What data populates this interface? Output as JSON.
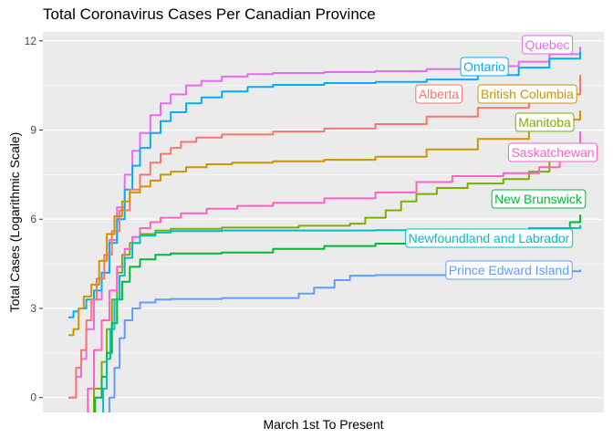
{
  "chart_data": {
    "type": "line",
    "title": "Total Coronavirus Cases Per Canadian Province",
    "xlabel": "March 1st To Present",
    "ylabel": "Total Cases (Logarithmic Scale)",
    "xlim": [
      0,
      100
    ],
    "ylim": [
      -0.5,
      12.3
    ],
    "yticks": [
      0,
      3,
      6,
      9,
      12
    ],
    "ytick_labels": [
      "0",
      "3",
      "6",
      "9",
      "12"
    ],
    "grid": true,
    "legend": "direct labels at line ends",
    "series": [
      {
        "name": "Quebec",
        "color": "#e76bf3",
        "points": [
          [
            0,
            0
          ],
          [
            1,
            0
          ],
          [
            1.5,
            0.7
          ],
          [
            2.5,
            1.3
          ],
          [
            3.5,
            2.3
          ],
          [
            5,
            3.3
          ],
          [
            6.5,
            4.2
          ],
          [
            8,
            5.3
          ],
          [
            9.5,
            6.4
          ],
          [
            11,
            7.5
          ],
          [
            12.5,
            8.3
          ],
          [
            14,
            8.9
          ],
          [
            16,
            9.5
          ],
          [
            18,
            9.9
          ],
          [
            20,
            10.2
          ],
          [
            23,
            10.5
          ],
          [
            26,
            10.65
          ],
          [
            30,
            10.8
          ],
          [
            35,
            10.88
          ],
          [
            40,
            10.92
          ],
          [
            50,
            10.95
          ],
          [
            60,
            10.98
          ],
          [
            70,
            11.05
          ],
          [
            80,
            11.15
          ],
          [
            88,
            11.3
          ],
          [
            94,
            11.55
          ],
          [
            100,
            11.8
          ]
        ]
      },
      {
        "name": "Ontario",
        "color": "#00b0f6",
        "points": [
          [
            0,
            2.7
          ],
          [
            1,
            2.9
          ],
          [
            2,
            3.0
          ],
          [
            3.5,
            3.3
          ],
          [
            5,
            3.6
          ],
          [
            6.5,
            4.2
          ],
          [
            8,
            5.2
          ],
          [
            9.5,
            6.0
          ],
          [
            11,
            7.0
          ],
          [
            12.5,
            7.8
          ],
          [
            14,
            8.4
          ],
          [
            16,
            8.9
          ],
          [
            18,
            9.3
          ],
          [
            20,
            9.6
          ],
          [
            23,
            9.9
          ],
          [
            26,
            10.1
          ],
          [
            30,
            10.3
          ],
          [
            35,
            10.45
          ],
          [
            40,
            10.52
          ],
          [
            50,
            10.58
          ],
          [
            60,
            10.62
          ],
          [
            70,
            10.7
          ],
          [
            80,
            10.85
          ],
          [
            88,
            11.1
          ],
          [
            94,
            11.4
          ],
          [
            100,
            11.65
          ]
        ]
      },
      {
        "name": "Alberta",
        "color": "#f8766d",
        "points": [
          [
            0,
            0
          ],
          [
            1,
            0
          ],
          [
            1.5,
            1.0
          ],
          [
            2.5,
            1.6
          ],
          [
            3.5,
            2.6
          ],
          [
            4.5,
            3.3
          ],
          [
            5.5,
            4.0
          ],
          [
            7,
            4.8
          ],
          [
            8.5,
            5.6
          ],
          [
            10,
            6.3
          ],
          [
            12,
            7.0
          ],
          [
            14,
            7.5
          ],
          [
            16,
            7.9
          ],
          [
            18,
            8.2
          ],
          [
            20,
            8.4
          ],
          [
            22,
            8.6
          ],
          [
            25,
            8.75
          ],
          [
            30,
            8.85
          ],
          [
            40,
            8.95
          ],
          [
            50,
            9.05
          ],
          [
            60,
            9.2
          ],
          [
            70,
            9.45
          ],
          [
            80,
            9.75
          ],
          [
            90,
            10.2
          ],
          [
            100,
            10.85
          ]
        ]
      },
      {
        "name": "British Columbia",
        "color": "#cd9600",
        "points": [
          [
            0,
            2.1
          ],
          [
            1,
            2.3
          ],
          [
            2,
            3.0
          ],
          [
            3,
            3.4
          ],
          [
            4.5,
            3.8
          ],
          [
            6,
            4.6
          ],
          [
            7.5,
            5.5
          ],
          [
            9,
            6.1
          ],
          [
            10.5,
            6.6
          ],
          [
            12,
            6.9
          ],
          [
            14,
            7.1
          ],
          [
            16,
            7.3
          ],
          [
            18,
            7.5
          ],
          [
            20,
            7.6
          ],
          [
            23,
            7.75
          ],
          [
            27,
            7.85
          ],
          [
            32,
            7.9
          ],
          [
            40,
            7.95
          ],
          [
            50,
            8.0
          ],
          [
            60,
            8.1
          ],
          [
            70,
            8.35
          ],
          [
            80,
            8.7
          ],
          [
            90,
            9.1
          ],
          [
            95,
            9.35
          ],
          [
            100,
            9.65
          ]
        ]
      },
      {
        "name": "Manitoba",
        "color": "#7cae00",
        "points": [
          [
            4.2,
            -0.8
          ],
          [
            5,
            0.3
          ],
          [
            6.5,
            1.2
          ],
          [
            7.5,
            2.3
          ],
          [
            8.5,
            3.3
          ],
          [
            9.5,
            4.2
          ],
          [
            10.5,
            4.8
          ],
          [
            12,
            5.2
          ],
          [
            14,
            5.5
          ],
          [
            17,
            5.62
          ],
          [
            20,
            5.68
          ],
          [
            30,
            5.72
          ],
          [
            45,
            5.78
          ],
          [
            55,
            5.85
          ],
          [
            58,
            6.05
          ],
          [
            62,
            6.3
          ],
          [
            65,
            6.6
          ],
          [
            68,
            6.85
          ],
          [
            72,
            7.05
          ],
          [
            78,
            7.2
          ],
          [
            85,
            7.35
          ],
          [
            90,
            7.6
          ],
          [
            94,
            8.0
          ],
          [
            97,
            8.4
          ],
          [
            100,
            8.6
          ]
        ]
      },
      {
        "name": "Saskatchewan",
        "color": "#ff61c3",
        "points": [
          [
            3,
            -0.8
          ],
          [
            3.8,
            0.3
          ],
          [
            5,
            1.6
          ],
          [
            6.5,
            2.6
          ],
          [
            8,
            3.6
          ],
          [
            9.5,
            4.4
          ],
          [
            11,
            5.0
          ],
          [
            12.5,
            5.4
          ],
          [
            14,
            5.7
          ],
          [
            16,
            5.9
          ],
          [
            18,
            6.05
          ],
          [
            22,
            6.2
          ],
          [
            27,
            6.35
          ],
          [
            33,
            6.45
          ],
          [
            40,
            6.55
          ],
          [
            50,
            6.7
          ],
          [
            60,
            6.9
          ],
          [
            68,
            7.25
          ],
          [
            75,
            7.45
          ],
          [
            85,
            7.55
          ],
          [
            92,
            7.75
          ],
          [
            96,
            8.3
          ],
          [
            100,
            8.95
          ]
        ]
      },
      {
        "name": "New Brunswick",
        "color": "#00ba38",
        "points": [
          [
            4.5,
            -0.8
          ],
          [
            5.2,
            0
          ],
          [
            6.5,
            0.7
          ],
          [
            7.5,
            1.5
          ],
          [
            8.5,
            2.5
          ],
          [
            9.5,
            3.3
          ],
          [
            10.5,
            3.9
          ],
          [
            12,
            4.4
          ],
          [
            14,
            4.65
          ],
          [
            17,
            4.8
          ],
          [
            20,
            4.85
          ],
          [
            30,
            4.88
          ],
          [
            40,
            5.0
          ],
          [
            50,
            5.1
          ],
          [
            60,
            5.18
          ],
          [
            70,
            5.22
          ],
          [
            80,
            5.3
          ],
          [
            90,
            5.45
          ],
          [
            95,
            5.6
          ],
          [
            98,
            5.9
          ],
          [
            100,
            6.15
          ]
        ]
      },
      {
        "name": "Newfoundland and Labrador",
        "color": "#00bfc4",
        "points": [
          [
            6,
            -0.8
          ],
          [
            6.8,
            0.3
          ],
          [
            7.5,
            1.3
          ],
          [
            8.2,
            2.3
          ],
          [
            9,
            3.3
          ],
          [
            10,
            4.1
          ],
          [
            11,
            4.7
          ],
          [
            12.5,
            5.2
          ],
          [
            14,
            5.45
          ],
          [
            17,
            5.55
          ],
          [
            20,
            5.6
          ],
          [
            30,
            5.62
          ],
          [
            45,
            5.62
          ],
          [
            60,
            5.63
          ],
          [
            75,
            5.65
          ],
          [
            90,
            5.7
          ],
          [
            100,
            5.8
          ]
        ]
      },
      {
        "name": "Prince Edward Island",
        "color": "#619cff",
        "points": [
          [
            7,
            -0.8
          ],
          [
            8,
            0
          ],
          [
            9,
            1.0
          ],
          [
            10,
            2.0
          ],
          [
            11,
            2.6
          ],
          [
            12.5,
            3.0
          ],
          [
            14,
            3.2
          ],
          [
            17,
            3.3
          ],
          [
            20,
            3.32
          ],
          [
            30,
            3.35
          ],
          [
            40,
            3.35
          ],
          [
            45,
            3.5
          ],
          [
            48,
            3.7
          ],
          [
            52,
            3.95
          ],
          [
            55,
            4.1
          ],
          [
            60,
            4.12
          ],
          [
            70,
            4.12
          ],
          [
            80,
            4.12
          ],
          [
            90,
            4.2
          ],
          [
            95,
            4.25
          ],
          [
            100,
            4.3
          ]
        ]
      }
    ]
  }
}
